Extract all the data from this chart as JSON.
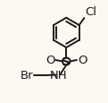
{
  "bg_color": "#fdf8f0",
  "line_color": "#1a1a1a",
  "cl_label": "Cl",
  "s_label": "S",
  "o_label": "O",
  "nh_label": "NH",
  "br_label": "Br",
  "font_size": 9.5,
  "lw": 1.4
}
